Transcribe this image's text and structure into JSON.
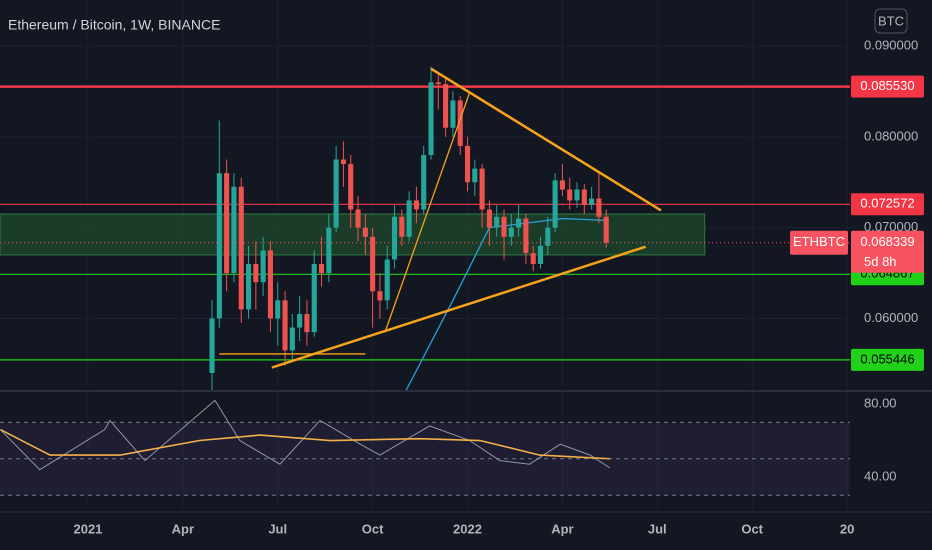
{
  "chart_data": {
    "type": "candlestick",
    "title": "Ethereum / Bitcoin, 1W, BINANCE",
    "currency": "BTC",
    "x": [
      17,
      18,
      19,
      20,
      21,
      22,
      23,
      24,
      25,
      26,
      27,
      28,
      29,
      30,
      31,
      32,
      33,
      34,
      35,
      36,
      37,
      38,
      39,
      40,
      41,
      42,
      43,
      44,
      45,
      46,
      47,
      48,
      49,
      50,
      51,
      52,
      53,
      54,
      55,
      56,
      57,
      58,
      59,
      60,
      61,
      62,
      63,
      64,
      65,
      66,
      67,
      68,
      69,
      70,
      71
    ],
    "open": [
      0.054,
      0.06,
      0.076,
      0.065,
      0.0745,
      0.061,
      0.066,
      0.064,
      0.0675,
      0.06,
      0.062,
      0.0565,
      0.059,
      0.0605,
      0.0585,
      0.066,
      0.065,
      0.07,
      0.0775,
      0.077,
      0.072,
      0.07,
      0.069,
      0.063,
      0.062,
      0.0665,
      0.0712,
      0.069,
      0.073,
      0.072,
      0.078,
      0.086,
      0.0858,
      0.081,
      0.084,
      0.079,
      0.075,
      0.0765,
      0.072,
      0.07,
      0.0712,
      0.069,
      0.07,
      0.071,
      0.0672,
      0.066,
      0.068,
      0.07,
      0.0752,
      0.0742,
      0.073,
      0.0742,
      0.0725,
      0.0732,
      0.0712
    ],
    "high": [
      0.062,
      0.0818,
      0.0775,
      0.076,
      0.0755,
      0.068,
      0.0685,
      0.069,
      0.0685,
      0.064,
      0.063,
      0.0605,
      0.0625,
      0.062,
      0.0675,
      0.069,
      0.0715,
      0.079,
      0.0795,
      0.078,
      0.0735,
      0.0715,
      0.07,
      0.065,
      0.068,
      0.0725,
      0.072,
      0.074,
      0.0745,
      0.079,
      0.0877,
      0.087,
      0.0865,
      0.085,
      0.0845,
      0.08,
      0.0775,
      0.077,
      0.073,
      0.0725,
      0.072,
      0.0715,
      0.0725,
      0.0715,
      0.068,
      0.069,
      0.0712,
      0.076,
      0.077,
      0.0755,
      0.075,
      0.0748,
      0.0745,
      0.076,
      0.072
    ],
    "low": [
      0.0518,
      0.059,
      0.063,
      0.064,
      0.0595,
      0.06,
      0.061,
      0.0625,
      0.0585,
      0.057,
      0.0548,
      0.0555,
      0.0575,
      0.057,
      0.058,
      0.0635,
      0.064,
      0.0695,
      0.0745,
      0.07,
      0.0685,
      0.067,
      0.059,
      0.06,
      0.061,
      0.0655,
      0.068,
      0.0685,
      0.0705,
      0.0715,
      0.0775,
      0.083,
      0.08,
      0.08,
      0.078,
      0.074,
      0.0735,
      0.07,
      0.068,
      0.069,
      0.0665,
      0.068,
      0.069,
      0.066,
      0.0652,
      0.0655,
      0.067,
      0.0695,
      0.0735,
      0.072,
      0.0722,
      0.0715,
      0.072,
      0.0705,
      0.0678
    ],
    "close": [
      0.06,
      0.076,
      0.065,
      0.0745,
      0.061,
      0.066,
      0.064,
      0.0675,
      0.06,
      0.062,
      0.0565,
      0.059,
      0.0605,
      0.0585,
      0.066,
      0.065,
      0.07,
      0.0775,
      0.077,
      0.072,
      0.07,
      0.069,
      0.063,
      0.062,
      0.0665,
      0.0712,
      0.069,
      0.073,
      0.072,
      0.078,
      0.086,
      0.0858,
      0.081,
      0.084,
      0.079,
      0.075,
      0.0765,
      0.072,
      0.07,
      0.0712,
      0.069,
      0.07,
      0.071,
      0.0672,
      0.066,
      0.068,
      0.07,
      0.0752,
      0.0742,
      0.073,
      0.0742,
      0.0725,
      0.0732,
      0.0712,
      0.068339
    ],
    "up_color": "#26a69a",
    "down_color": "#ef5350",
    "xlim": [
      -12.05,
      104.4
    ],
    "xticks": [
      {
        "value": 0,
        "label": "2021"
      },
      {
        "value": 13,
        "label": "Apr"
      },
      {
        "value": 26,
        "label": "Jul"
      },
      {
        "value": 39,
        "label": "Oct"
      },
      {
        "value": 52,
        "label": "2022"
      },
      {
        "value": 65,
        "label": "Apr"
      },
      {
        "value": 78,
        "label": "Jul"
      },
      {
        "value": 91,
        "label": "Oct"
      },
      {
        "value": 104,
        "label": "20"
      }
    ],
    "ylim": [
      0.05213,
      0.09506
    ],
    "yticks": [
      {
        "value": 0.06,
        "label": "0.060000"
      },
      {
        "value": 0.07,
        "label": "0.070000"
      },
      {
        "value": 0.08,
        "label": "0.080000"
      },
      {
        "value": 0.09,
        "label": "0.090000"
      }
    ],
    "levels": [
      {
        "value": 0.08553,
        "label": "0.085530",
        "color": "#f23645"
      },
      {
        "value": 0.072572,
        "label": "0.072572",
        "color": "#f23645"
      },
      {
        "value": 0.064867,
        "label": "0.064867",
        "color": "#22d11a"
      },
      {
        "value": 0.055446,
        "label": "0.055446",
        "color": "#22d11a"
      }
    ],
    "zone": {
      "from": 0.067,
      "to": 0.0715,
      "x_end": 84.5,
      "color": "#1f4a2c"
    },
    "last": {
      "symbol": "ETHBTC",
      "value": 0.068339,
      "countdown": "5d 8h",
      "color": "#f7525f"
    },
    "trendlines": [
      {
        "x": [
          47,
          78.5
        ],
        "y": [
          0.0875,
          0.0719
        ],
        "color": "#f7a21b"
      },
      {
        "x": [
          25.2,
          76.4
        ],
        "y": [
          0.0546,
          0.0679
        ],
        "color": "#f7a21b"
      },
      {
        "x": [
          18,
          38
        ],
        "y": [
          0.0561,
          0.0561
        ],
        "color": "#f7a21b"
      },
      {
        "x": [
          40.7,
          52.3
        ],
        "y": [
          0.0585,
          0.0849
        ],
        "color": "#f7a21b"
      }
    ],
    "ma": {
      "color": "#2a9ed6",
      "x": [
        43.4,
        50,
        55,
        60,
        65,
        71
      ],
      "values": [
        0.0518,
        0.062,
        0.07,
        0.0705,
        0.071,
        0.0708
      ]
    },
    "rsi": {
      "ylim": [
        21.9,
        86.6
      ],
      "yticks": [
        {
          "value": 80,
          "label": "80.00"
        },
        {
          "value": 40,
          "label": "40.00"
        }
      ],
      "bands": [
        30,
        50,
        70
      ],
      "color": "#9598a1",
      "x": [
        -12,
        -6.6,
        2.3,
        3,
        7.8,
        17.4,
        20.8,
        26.3,
        31.8,
        37.3,
        40,
        46.8,
        52.3,
        56.4,
        60.5,
        64.7,
        68.8,
        71.5
      ],
      "values": [
        66,
        44,
        66,
        71,
        49,
        82,
        60,
        47,
        71,
        58,
        52,
        68,
        60,
        49,
        47,
        58,
        52,
        45
      ],
      "ma": {
        "color": "#f5b04a",
        "x": [
          -12,
          -5.2,
          4.4,
          15.3,
          23.6,
          33.2,
          45.5,
          53.7,
          61.9,
          71.5
        ],
        "values": [
          66,
          52,
          52,
          60,
          63,
          60,
          61,
          60,
          52,
          50
        ]
      }
    }
  }
}
